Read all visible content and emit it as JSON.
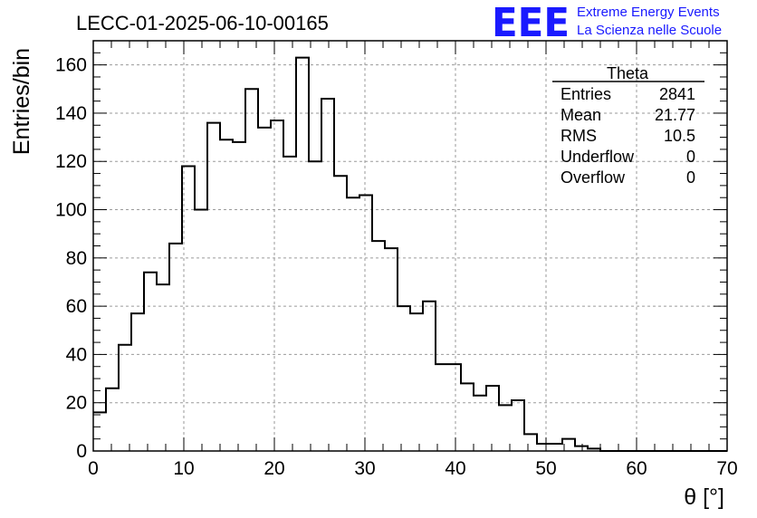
{
  "header": {
    "run_title": "LECC-01-2025-06-10-00165",
    "logo_text": "EEE",
    "logo_line1": "Extreme Energy Events",
    "logo_line2": "La Scienza nelle Scuole"
  },
  "stats_box": {
    "title": "Theta",
    "rows": [
      {
        "label": "Entries",
        "value": "2841"
      },
      {
        "label": "Mean",
        "value": "21.77"
      },
      {
        "label": "RMS",
        "value": "10.5"
      },
      {
        "label": "Underflow",
        "value": "0"
      },
      {
        "label": "Overflow",
        "value": "0"
      }
    ]
  },
  "chart_data": {
    "type": "bar",
    "histogram": true,
    "title": "LECC-01-2025-06-10-00165",
    "xlabel": "θ [°]",
    "ylabel": "Entries/bin",
    "xlim": [
      0,
      70
    ],
    "ylim": [
      0,
      170
    ],
    "grid": true,
    "bin_width": 1.4,
    "x_ticks": [
      0,
      10,
      20,
      30,
      40,
      50,
      60,
      70
    ],
    "y_ticks": [
      0,
      20,
      40,
      60,
      80,
      100,
      120,
      140,
      160
    ],
    "values": [
      16,
      26,
      44,
      57,
      74,
      69,
      86,
      118,
      100,
      136,
      129,
      128,
      150,
      134,
      137,
      122,
      163,
      120,
      146,
      114,
      105,
      106,
      87,
      84,
      60,
      57,
      62,
      36,
      36,
      28,
      23,
      27,
      19,
      21,
      7,
      3,
      3,
      5,
      2,
      1,
      0,
      0,
      0,
      0,
      0,
      0,
      0,
      0,
      0,
      0
    ]
  }
}
